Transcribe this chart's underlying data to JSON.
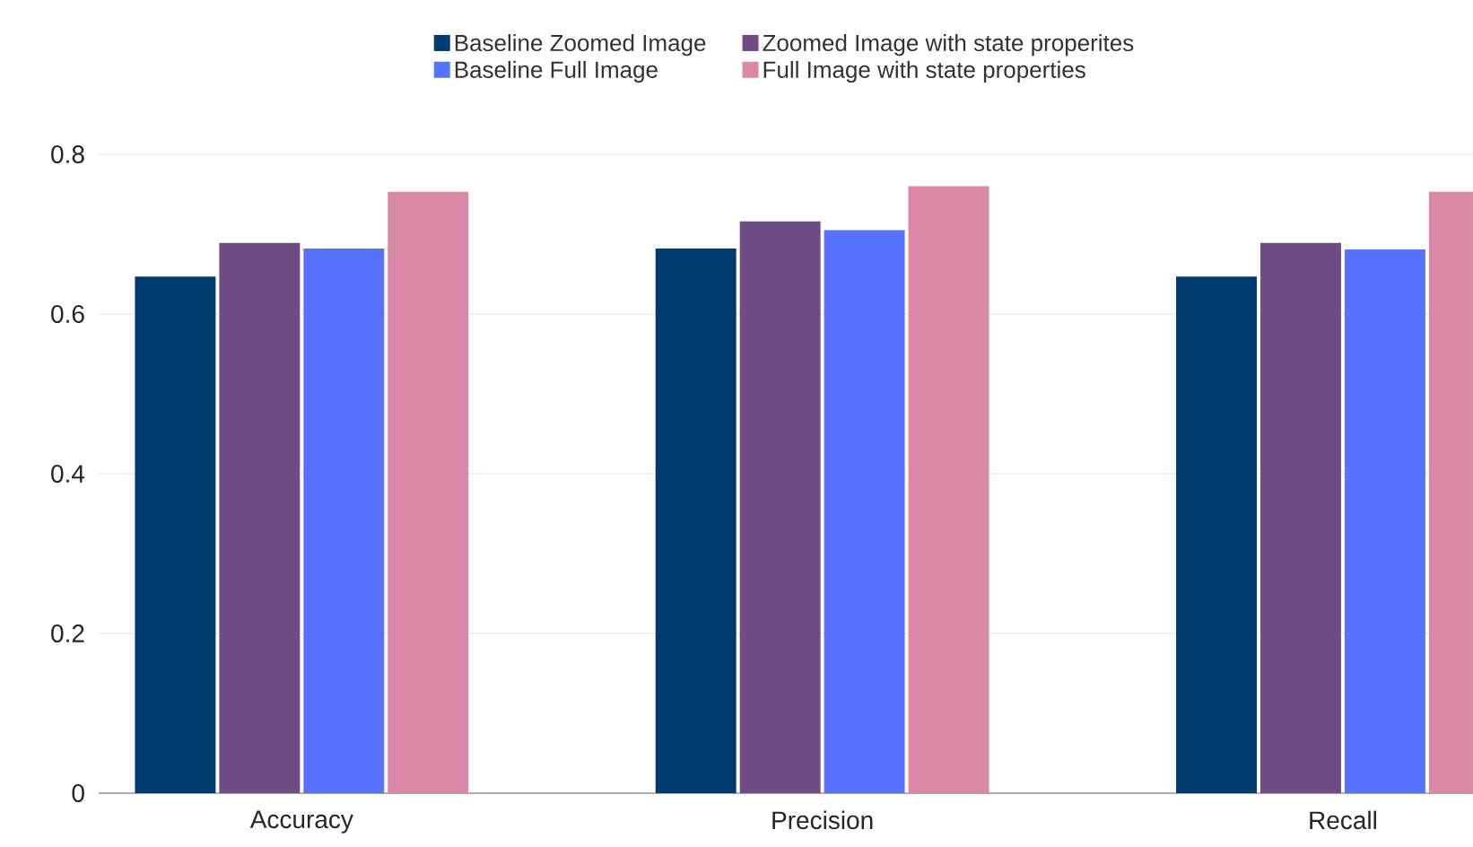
{
  "chart_data": {
    "type": "bar",
    "categories": [
      "Accuracy",
      "Precision",
      "Recall"
    ],
    "series": [
      {
        "name": "Baseline Zoomed Image",
        "color": "#003b6f",
        "values": [
          0.647,
          0.682,
          0.647
        ]
      },
      {
        "name": "Zoomed Image with state properites",
        "color": "#704c85",
        "values": [
          0.689,
          0.716,
          0.689
        ]
      },
      {
        "name": "Baseline Full Image",
        "color": "#5573ff",
        "values": [
          0.682,
          0.705,
          0.681
        ]
      },
      {
        "name": "Full Image with state properties",
        "color": "#d988a8",
        "values": [
          0.753,
          0.76,
          0.753
        ]
      }
    ],
    "ylim": [
      0,
      0.8
    ],
    "yticks": [
      0,
      0.2,
      0.4,
      0.6,
      0.8
    ],
    "grid": "y",
    "legend": "top"
  }
}
